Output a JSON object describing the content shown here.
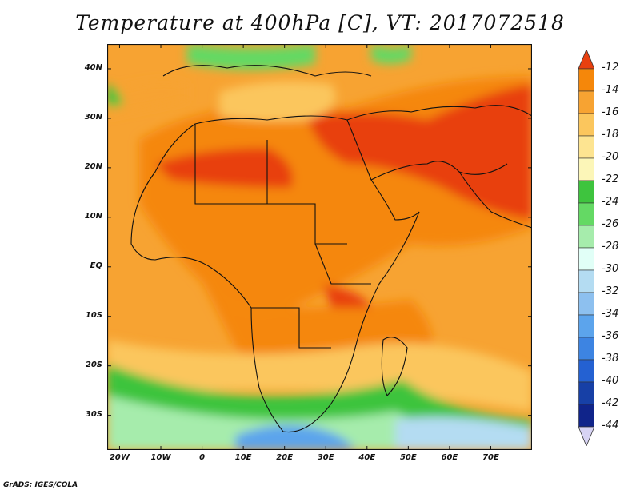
{
  "title": "Temperature at 400hPa [C], VT: 2017072518",
  "footer": "GrADS: IGES/COLA",
  "map": {
    "lon_range": [
      -23,
      80
    ],
    "lat_range": [
      -37,
      45
    ],
    "lat_ticks": [
      {
        "value": 40,
        "label": "40N"
      },
      {
        "value": 30,
        "label": "30N"
      },
      {
        "value": 20,
        "label": "20N"
      },
      {
        "value": 10,
        "label": "10N"
      },
      {
        "value": 0,
        "label": "EQ"
      },
      {
        "value": -10,
        "label": "10S"
      },
      {
        "value": -20,
        "label": "20S"
      },
      {
        "value": -30,
        "label": "30S"
      }
    ],
    "lon_ticks": [
      {
        "value": -20,
        "label": "20W"
      },
      {
        "value": -10,
        "label": "10W"
      },
      {
        "value": 0,
        "label": "0"
      },
      {
        "value": 10,
        "label": "10E"
      },
      {
        "value": 20,
        "label": "20E"
      },
      {
        "value": 30,
        "label": "30E"
      },
      {
        "value": 40,
        "label": "40E"
      },
      {
        "value": 50,
        "label": "50E"
      },
      {
        "value": 60,
        "label": "60E"
      },
      {
        "value": 70,
        "label": "70E"
      }
    ]
  },
  "colorbar": {
    "levels": [
      "-12",
      "-14",
      "-16",
      "-18",
      "-20",
      "-22",
      "-24",
      "-26",
      "-28",
      "-30",
      "-32",
      "-34",
      "-36",
      "-38",
      "-40",
      "-42",
      "-44"
    ],
    "colors": [
      "#e8400f",
      "#f5870a",
      "#f7a332",
      "#fbc65d",
      "#fde491",
      "#fcf6b8",
      "#3ec43e",
      "#64d964",
      "#a6ecac",
      "#e1fff7",
      "#b4dcf2",
      "#8dc0ef",
      "#5ca4ec",
      "#3d84e2",
      "#2461d2",
      "#1740a6",
      "#10248a",
      "#0a1468"
    ],
    "top_color": "#e8400f",
    "bottom_color": "#d7d3f4"
  }
}
